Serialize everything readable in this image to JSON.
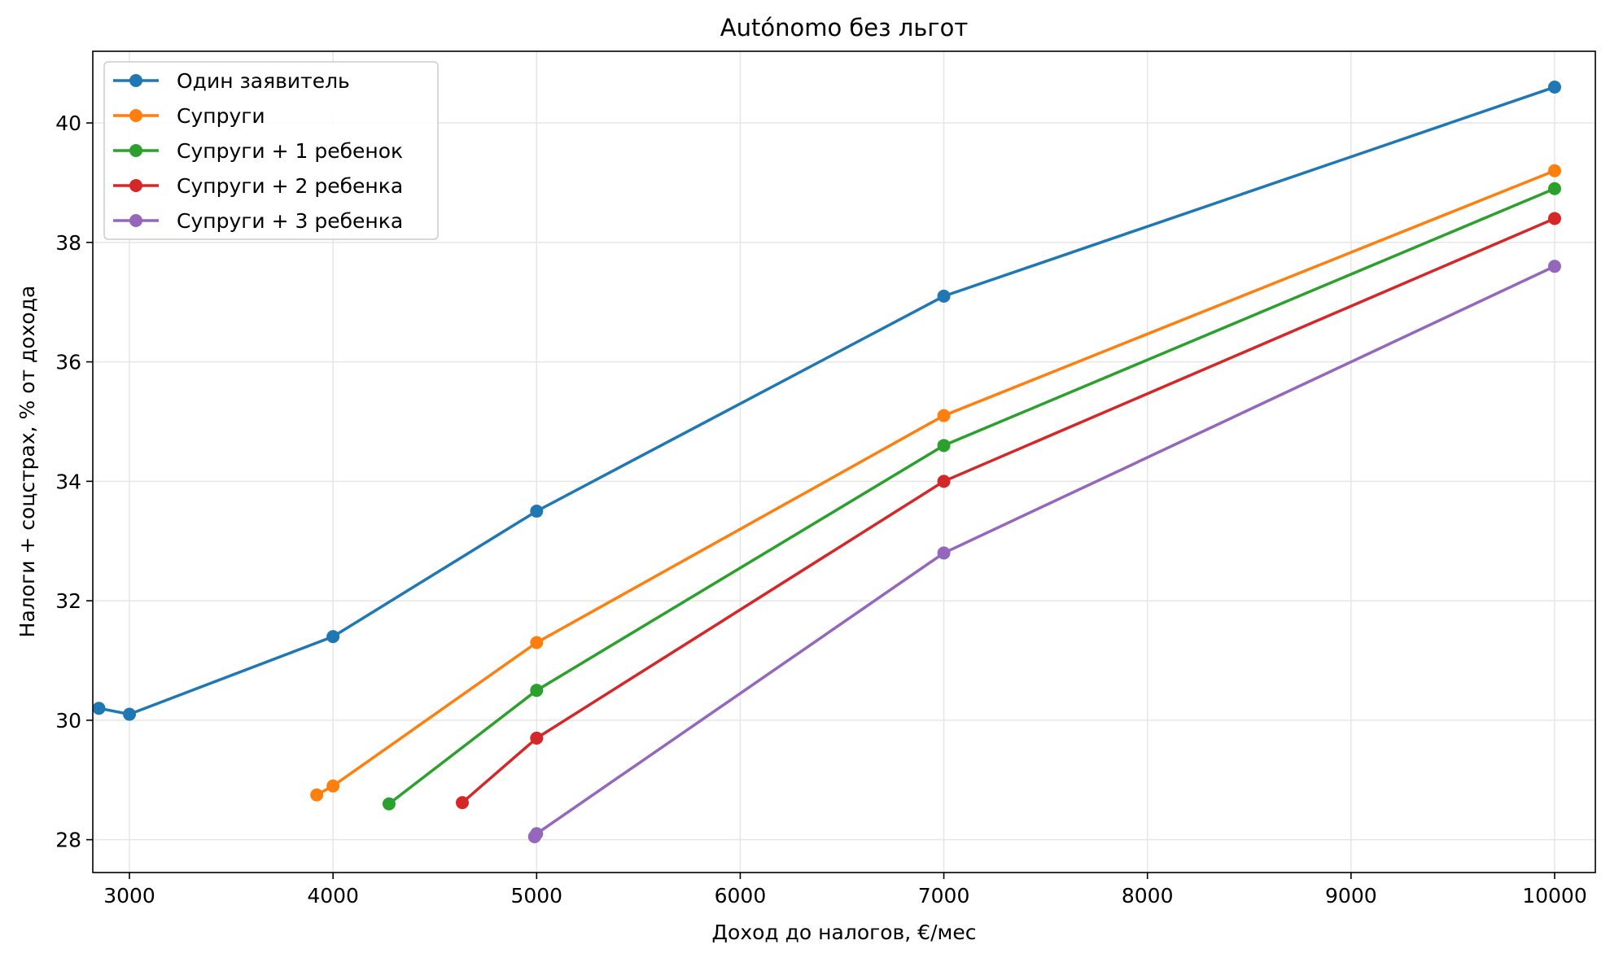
{
  "chart_data": {
    "type": "line",
    "title": "Autónomo без льгот",
    "xlabel": "Доход до налогов, €/мес",
    "ylabel": "Налоги + соцстрах, % от дохода",
    "xlim": [
      2820,
      10200
    ],
    "ylim": [
      27.45,
      41.2
    ],
    "xticks": [
      3000,
      4000,
      5000,
      6000,
      7000,
      8000,
      9000,
      10000
    ],
    "yticks": [
      28,
      30,
      32,
      34,
      36,
      38,
      40
    ],
    "grid": true,
    "legend_position": "top-left",
    "series": [
      {
        "name": "Один заявитель",
        "color": "#1f77b4",
        "x": [
          2850,
          3000,
          4000,
          5000,
          7000,
          10000
        ],
        "y": [
          30.2,
          30.1,
          31.4,
          33.5,
          37.1,
          40.6
        ]
      },
      {
        "name": "Супруги",
        "color": "#ff7f0e",
        "x": [
          3920,
          4000,
          5000,
          7000,
          10000
        ],
        "y": [
          28.75,
          28.9,
          31.3,
          35.1,
          39.2
        ]
      },
      {
        "name": "Супруги + 1 ребенок",
        "color": "#2ca02c",
        "x": [
          4275,
          5000,
          7000,
          10000
        ],
        "y": [
          28.6,
          30.5,
          34.6,
          38.9
        ]
      },
      {
        "name": "Супруги + 2 ребенка",
        "color": "#d62728",
        "x": [
          4635,
          5000,
          7000,
          10000
        ],
        "y": [
          28.62,
          29.7,
          34.0,
          38.4
        ]
      },
      {
        "name": "Супруги + 3 ребенка",
        "color": "#9467bd",
        "x": [
          4990,
          5000,
          7000,
          10000
        ],
        "y": [
          28.05,
          28.1,
          32.8,
          37.6
        ]
      }
    ]
  }
}
